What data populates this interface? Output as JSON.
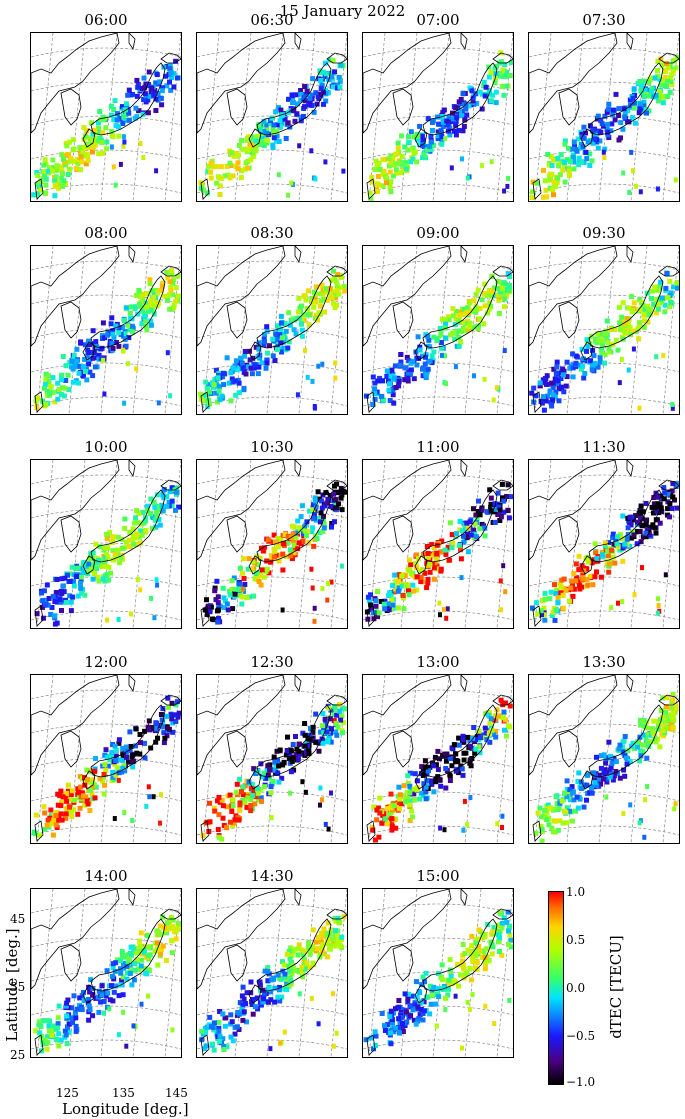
{
  "chart_data": {
    "type": "heatmap",
    "title": "15 January 2022",
    "panels": [
      "06:00",
      "06:30",
      "07:00",
      "07:30",
      "08:00",
      "08:30",
      "09:00",
      "09:30",
      "10:00",
      "10:30",
      "11:00",
      "11:30",
      "12:00",
      "12:30",
      "13:00",
      "13:30",
      "14:00",
      "14:30",
      "15:00"
    ],
    "xlabel": "Longitude [deg.]",
    "ylabel": "Latitude [deg.]",
    "x_ticks": [
      "125",
      "135",
      "145"
    ],
    "y_ticks": [
      "45",
      "35",
      "25"
    ],
    "xlim": [
      120,
      148
    ],
    "ylim": [
      22,
      48
    ],
    "colorbar": {
      "label": "dTEC [TECU]",
      "range": [
        -1.0,
        1.0
      ],
      "ticks": [
        "1.0",
        "0.5",
        "0.0",
        "−0.5",
        "−1.0"
      ],
      "colormap": "jet-like (black → purple → blue → cyan → green → yellow → orange → red)"
    },
    "grid": "dashed lat/lon graticule"
  }
}
